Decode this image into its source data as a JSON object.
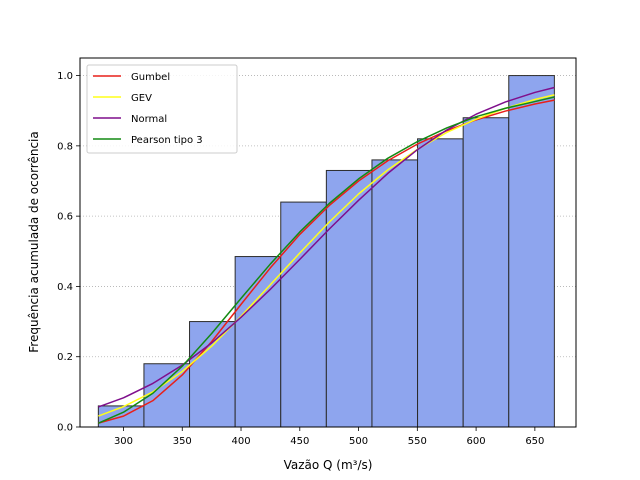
{
  "chart_data": {
    "type": "bar",
    "title": "",
    "xlabel": "Vazão Q (m³/s)",
    "ylabel": "Frequência acumulada de ocorrência",
    "xlim": [
      263,
      685
    ],
    "ylim": [
      0,
      1.05
    ],
    "xticks": [
      300,
      350,
      400,
      450,
      500,
      550,
      600,
      650
    ],
    "yticks": [
      0.0,
      0.2,
      0.4,
      0.6,
      0.8,
      1.0
    ],
    "grid": {
      "axis": "y",
      "style": "dotted"
    },
    "legend_position": "top-left",
    "histogram": {
      "color": "#8ea5ee",
      "edge_color": "#2b2b2b",
      "bins": [
        {
          "start": 278.6,
          "end": 317.4,
          "value": 0.06
        },
        {
          "start": 317.4,
          "end": 356.2,
          "value": 0.18
        },
        {
          "start": 356.2,
          "end": 395.0,
          "value": 0.3
        },
        {
          "start": 395.0,
          "end": 433.8,
          "value": 0.485
        },
        {
          "start": 433.8,
          "end": 472.6,
          "value": 0.64
        },
        {
          "start": 472.6,
          "end": 511.4,
          "value": 0.73
        },
        {
          "start": 511.4,
          "end": 550.2,
          "value": 0.76
        },
        {
          "start": 550.2,
          "end": 589.0,
          "value": 0.82
        },
        {
          "start": 589.0,
          "end": 627.8,
          "value": 0.88
        },
        {
          "start": 627.8,
          "end": 666.6,
          "value": 1.0
        }
      ]
    },
    "series": [
      {
        "name": "Gumbel",
        "color": "#e8201a",
        "x": [
          278.6,
          300,
          325,
          350,
          375,
          400,
          425,
          450,
          475,
          500,
          525,
          550,
          575,
          600,
          625,
          650,
          666.6
        ],
        "y": [
          0.011,
          0.031,
          0.075,
          0.148,
          0.243,
          0.349,
          0.453,
          0.548,
          0.63,
          0.7,
          0.758,
          0.805,
          0.843,
          0.874,
          0.899,
          0.919,
          0.93
        ]
      },
      {
        "name": "GEV",
        "color": "#ffff1a",
        "x": [
          278.6,
          300,
          325,
          350,
          375,
          400,
          425,
          450,
          475,
          500,
          525,
          550,
          575,
          600,
          625,
          650,
          666.6
        ],
        "y": [
          0.031,
          0.058,
          0.1,
          0.158,
          0.23,
          0.315,
          0.405,
          0.495,
          0.583,
          0.663,
          0.732,
          0.79,
          0.838,
          0.876,
          0.907,
          0.932,
          0.945
        ]
      },
      {
        "name": "Normal",
        "color": "#7f0f8c",
        "x": [
          278.6,
          300,
          325,
          350,
          375,
          400,
          425,
          450,
          475,
          500,
          525,
          550,
          575,
          600,
          625,
          650,
          666.6
        ],
        "y": [
          0.057,
          0.083,
          0.124,
          0.176,
          0.239,
          0.312,
          0.392,
          0.477,
          0.563,
          0.645,
          0.722,
          0.789,
          0.845,
          0.89,
          0.925,
          0.952,
          0.966
        ]
      },
      {
        "name": "Pearson tipo 3",
        "color": "#138a13",
        "x": [
          278.6,
          300,
          325,
          350,
          375,
          400,
          425,
          450,
          475,
          500,
          525,
          550,
          575,
          600,
          625,
          650,
          666.6
        ],
        "y": [
          0.011,
          0.042,
          0.096,
          0.173,
          0.266,
          0.366,
          0.464,
          0.555,
          0.636,
          0.706,
          0.765,
          0.812,
          0.851,
          0.883,
          0.907,
          0.926,
          0.939
        ]
      }
    ]
  }
}
